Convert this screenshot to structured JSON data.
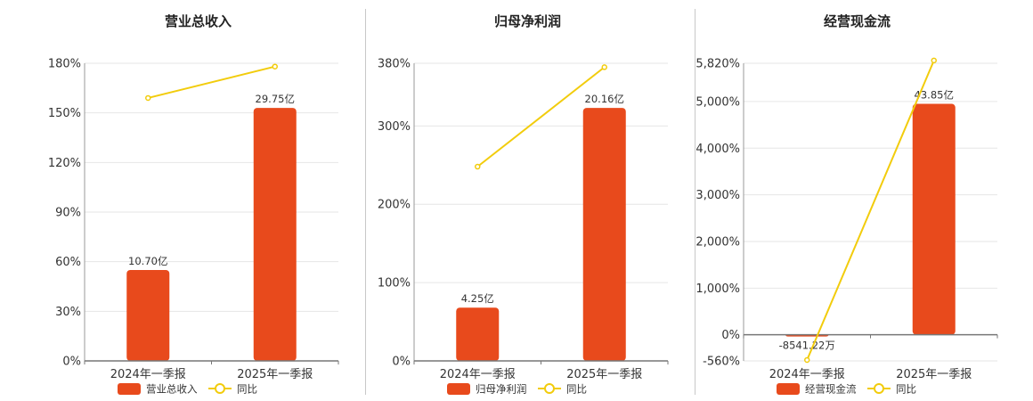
{
  "charts": [
    {
      "title": "营业总收入",
      "type": "bar",
      "categories": [
        "2024年一季报",
        "2025年一季报"
      ],
      "bar_legend": "营业总收入",
      "line_legend": "同比",
      "bar_labels": [
        "10.70亿",
        "29.75亿"
      ],
      "yticks": [
        "0%",
        "30%",
        "60%",
        "90%",
        "120%",
        "150%",
        "180%"
      ]
    },
    {
      "title": "归母净利润",
      "type": "bar",
      "categories": [
        "2024年一季报",
        "2025年一季报"
      ],
      "bar_legend": "归母净利润",
      "line_legend": "同比",
      "bar_labels": [
        "4.25亿",
        "20.16亿"
      ],
      "yticks": [
        "0%",
        "100%",
        "200%",
        "300%",
        "380%"
      ]
    },
    {
      "title": "经营现金流",
      "type": "bar",
      "categories": [
        "2024年一季报",
        "2025年一季报"
      ],
      "bar_legend": "经营现金流",
      "line_legend": "同比",
      "bar_labels": [
        "-8541.22万",
        "43.85亿"
      ],
      "yticks": [
        "-560%",
        "0%",
        "1,000%",
        "2,000%",
        "3,000%",
        "4,000%",
        "5,000%",
        "5,820%"
      ]
    }
  ],
  "chart_data": [
    {
      "type": "bar",
      "title": "营业总收入",
      "categories": [
        "2024年一季报",
        "2025年一季报"
      ],
      "ylim": [
        0,
        180
      ],
      "yticks": [
        0,
        30,
        60,
        90,
        120,
        150,
        180
      ],
      "series": [
        {
          "name": "营业总收入",
          "type": "bar",
          "values": [
            10.7,
            29.75
          ],
          "display_values": [
            55,
            153
          ]
        },
        {
          "name": "同比",
          "type": "line",
          "values": [
            159,
            178
          ]
        }
      ],
      "grid": true,
      "legend": "bottom",
      "colors": {
        "bar": "#E84A1C",
        "line": "#F2CC0C"
      }
    },
    {
      "type": "bar",
      "title": "归母净利润",
      "categories": [
        "2024年一季报",
        "2025年一季报"
      ],
      "ylim": [
        0,
        380
      ],
      "yticks": [
        0,
        100,
        200,
        300,
        380
      ],
      "series": [
        {
          "name": "归母净利润",
          "type": "bar",
          "values": [
            4.25,
            20.16
          ],
          "display_values": [
            68,
            323
          ]
        },
        {
          "name": "同比",
          "type": "line",
          "values": [
            248,
            375
          ]
        }
      ],
      "grid": true,
      "legend": "bottom",
      "colors": {
        "bar": "#E84A1C",
        "line": "#F2CC0C"
      }
    },
    {
      "type": "bar",
      "title": "经营现金流",
      "categories": [
        "2024年一季报",
        "2025年一季报"
      ],
      "ylim": [
        -560,
        5820
      ],
      "yticks": [
        -560,
        0,
        1000,
        2000,
        3000,
        4000,
        5000,
        5820
      ],
      "series": [
        {
          "name": "经营现金流",
          "type": "bar",
          "values": [
            -0.854122,
            43.85
          ],
          "display_values": [
            -25,
            4950
          ]
        },
        {
          "name": "同比",
          "type": "line",
          "values": [
            -540,
            5880
          ]
        }
      ],
      "grid": true,
      "legend": "bottom",
      "colors": {
        "bar": "#E84A1C",
        "line": "#F2CC0C"
      }
    }
  ]
}
